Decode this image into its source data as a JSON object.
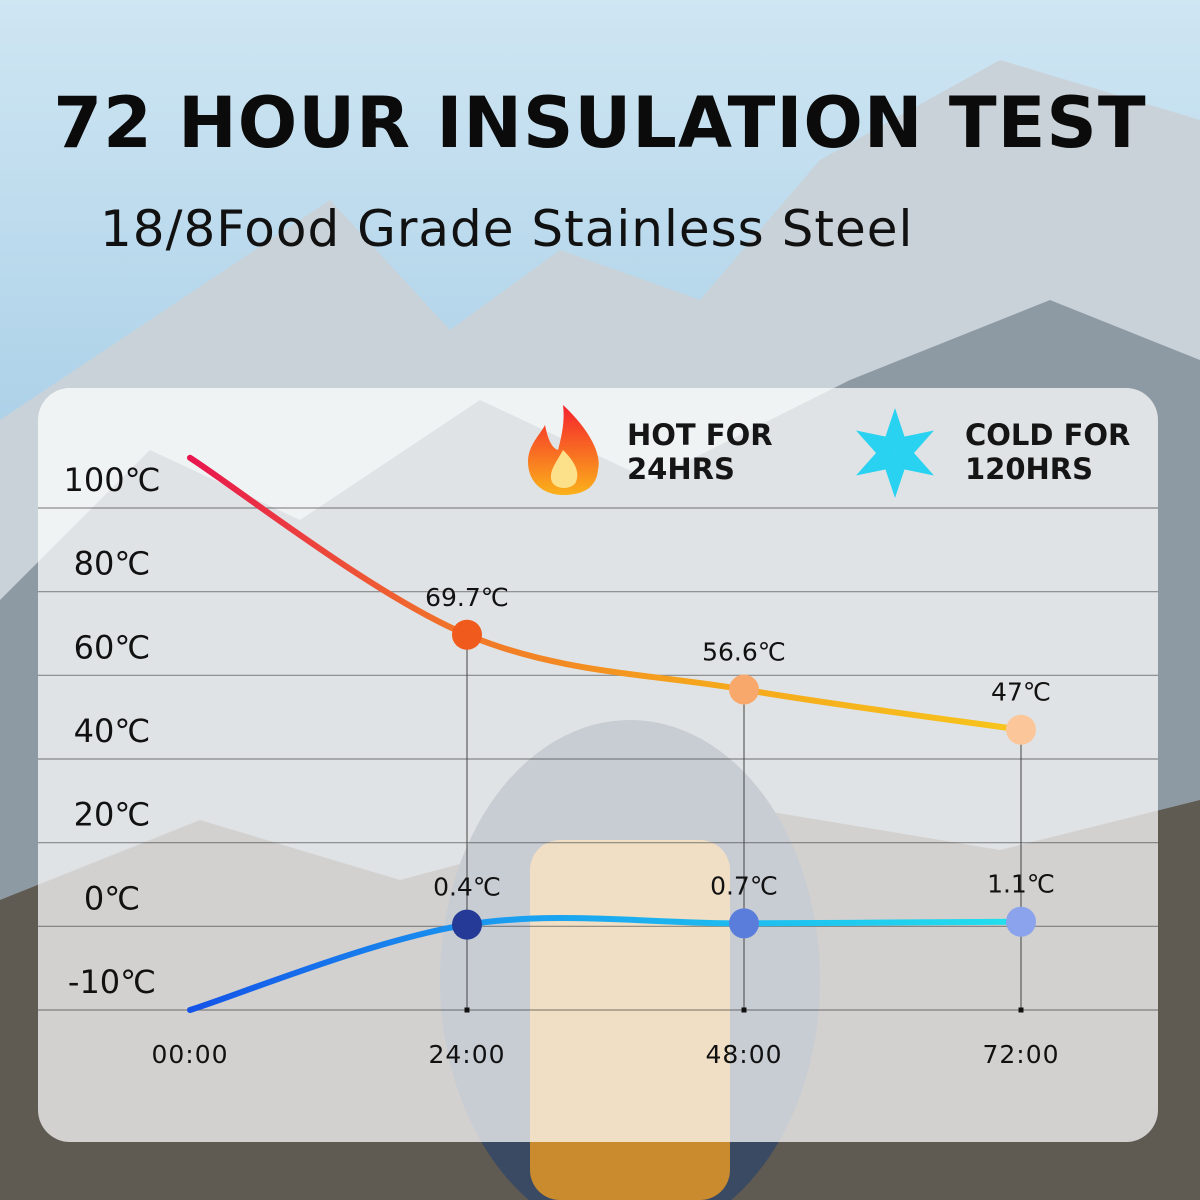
{
  "chart_data": {
    "type": "line",
    "title": "72 HOUR INSULATION TEST",
    "subtitle": "18/8Food Grade Stainless Steel",
    "categories": [
      "00:00",
      "24:00",
      "48:00",
      "72:00"
    ],
    "ylim": [
      -10,
      100
    ],
    "yticks": [
      {
        "value": -10,
        "label": "-10℃"
      },
      {
        "value": 0,
        "label": "0℃"
      },
      {
        "value": 20,
        "label": "20℃"
      },
      {
        "value": 40,
        "label": "40℃"
      },
      {
        "value": 60,
        "label": "60℃"
      },
      {
        "value": 80,
        "label": "80℃"
      },
      {
        "value": 100,
        "label": "100℃"
      }
    ],
    "grid": true,
    "series": [
      {
        "name": "HOT FOR 24HRS",
        "color": "#f39a1a",
        "values": [
          112,
          69.7,
          56.6,
          47
        ],
        "value_labels": [
          null,
          "69.7℃",
          "56.6℃",
          "47℃"
        ],
        "point_colors": [
          null,
          "#f05a1c",
          "#f9a86b",
          "#fbc79a"
        ]
      },
      {
        "name": "COLD FOR 120HRS",
        "color": "#1aa6f0",
        "values": [
          -10,
          0.4,
          0.7,
          1.1
        ],
        "value_labels": [
          null,
          "0.4℃",
          "0.7℃",
          "1.1℃"
        ],
        "point_colors": [
          null,
          "#243a96",
          "#5a7ddc",
          "#8aa3ec"
        ]
      }
    ]
  }
}
